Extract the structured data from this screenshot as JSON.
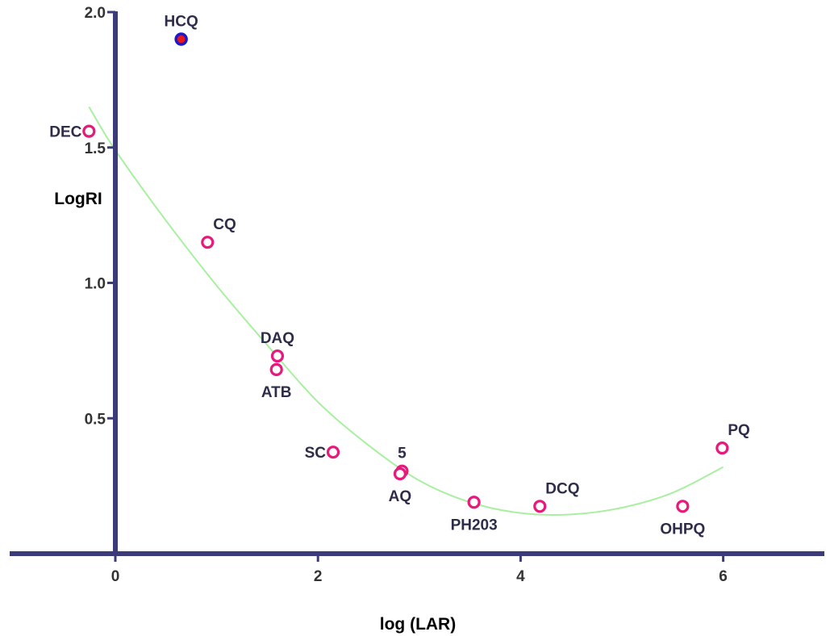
{
  "chart_data": {
    "type": "scatter",
    "title": "",
    "xlabel": "log (LAR)",
    "ylabel": "LogRI",
    "xlim": [
      -1,
      7
    ],
    "ylim": [
      0,
      2.0
    ],
    "x_ticks": [
      {
        "value": 0,
        "label": "0"
      },
      {
        "value": 2,
        "label": "2"
      },
      {
        "value": 4,
        "label": "4"
      },
      {
        "value": 6,
        "label": "6"
      }
    ],
    "y_ticks": [
      {
        "value": 0.5,
        "label": "0.5"
      },
      {
        "value": 1.0,
        "label": "1.0"
      },
      {
        "value": 1.5,
        "label": "1.5"
      },
      {
        "value": 2.0,
        "label": "2.0"
      }
    ],
    "grid": false,
    "colors": {
      "axis": "#3b3b7a",
      "point_outline": "#e8197a",
      "highlight_outline": "#1a1ad6",
      "highlight_fill": "#e81919",
      "fit_line": "#a8f0a0"
    },
    "points": [
      {
        "label": "HCQ",
        "x": 0.65,
        "y": 1.9,
        "highlight": true,
        "label_pos": "above"
      },
      {
        "label": "DEC",
        "x": -0.26,
        "y": 1.56,
        "label_pos": "left"
      },
      {
        "label": "CQ",
        "x": 0.91,
        "y": 1.15,
        "label_pos": "above-right"
      },
      {
        "label": "DAQ",
        "x": 1.6,
        "y": 0.73,
        "label_pos": "above"
      },
      {
        "label": "ATB",
        "x": 1.59,
        "y": 0.68,
        "label_pos": "below"
      },
      {
        "label": "SC",
        "x": 2.15,
        "y": 0.375,
        "label_pos": "left"
      },
      {
        "label": "5",
        "x": 2.83,
        "y": 0.305,
        "label_pos": "above"
      },
      {
        "label": "AQ",
        "x": 2.81,
        "y": 0.295,
        "label_pos": "below"
      },
      {
        "label": "PH203",
        "x": 3.54,
        "y": 0.19,
        "label_pos": "below"
      },
      {
        "label": "DCQ",
        "x": 4.19,
        "y": 0.175,
        "label_pos": "above-right"
      },
      {
        "label": "OHPQ",
        "x": 5.6,
        "y": 0.175,
        "label_pos": "below"
      },
      {
        "label": "PQ",
        "x": 5.99,
        "y": 0.39,
        "label_pos": "above-right"
      }
    ],
    "fit_curve": {
      "x": [
        -0.26,
        0,
        0.5,
        1,
        1.5,
        2,
        2.5,
        3,
        3.5,
        4,
        4.5,
        5,
        5.5,
        6
      ],
      "y": [
        1.65,
        1.49,
        1.23,
        0.99,
        0.77,
        0.56,
        0.4,
        0.27,
        0.19,
        0.15,
        0.145,
        0.17,
        0.225,
        0.32
      ]
    }
  }
}
